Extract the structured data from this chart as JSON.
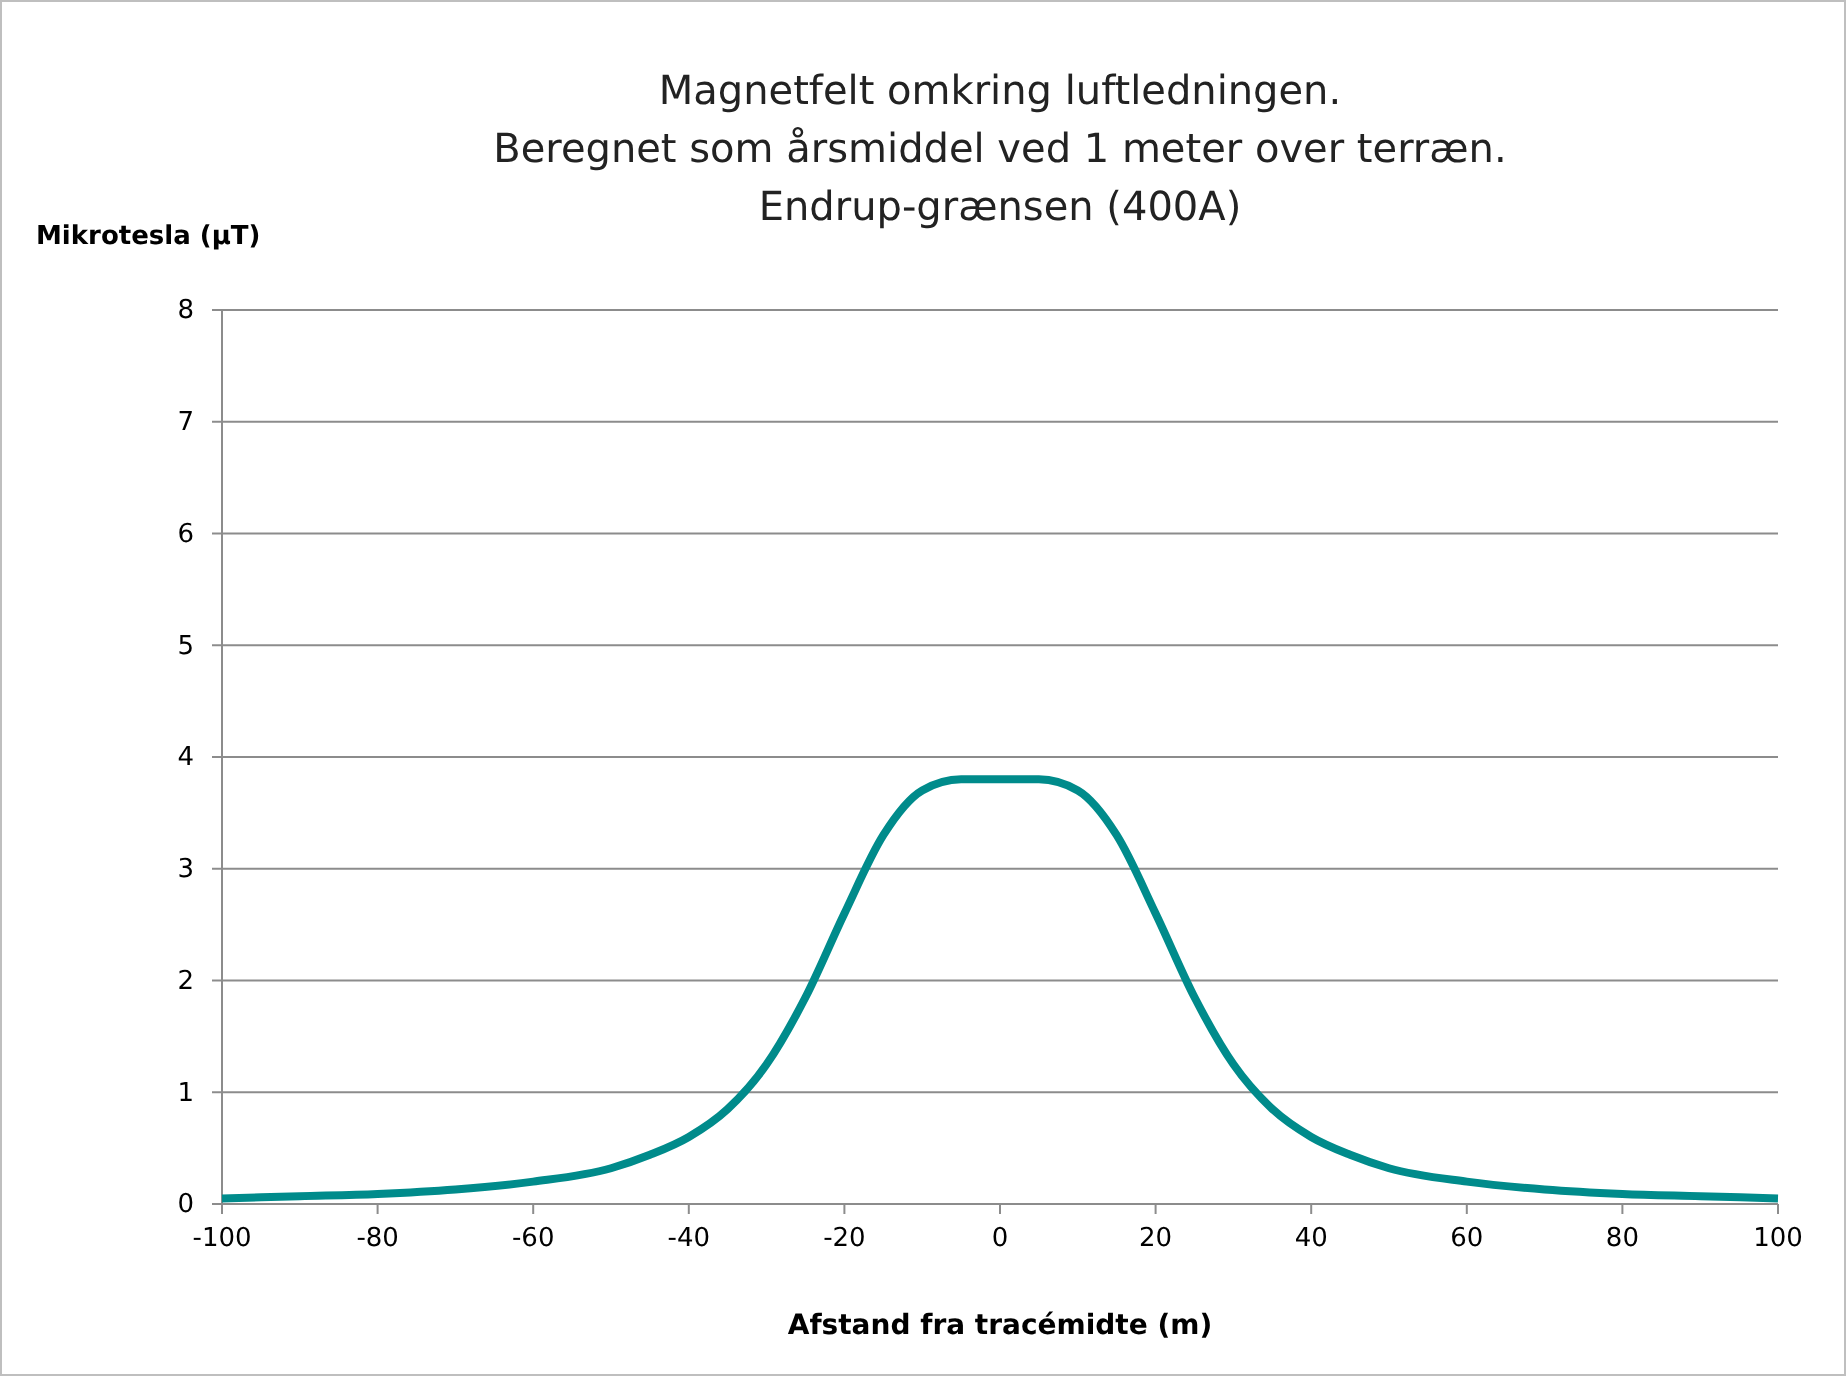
{
  "chart_data": {
    "type": "line",
    "title": "Magnetfelt omkring luftledningen.\nBeregnet som årsmiddel ved 1 meter over terræn.\nEndrup-grænsen  (400A)",
    "xlabel": "Afstand fra tracémidte (m)",
    "ylabel": "Mikrotesla (µT)",
    "x": [
      -100,
      -90,
      -80,
      -70,
      -60,
      -50,
      -45,
      -40,
      -35,
      -30,
      -25,
      -20,
      -15,
      -10,
      -5,
      0,
      5,
      10,
      15,
      20,
      25,
      30,
      35,
      40,
      45,
      50,
      60,
      70,
      80,
      90,
      100
    ],
    "series": [
      {
        "color": "#008b8b",
        "values": [
          0.05,
          0.07,
          0.09,
          0.13,
          0.2,
          0.32,
          0.44,
          0.6,
          0.85,
          1.25,
          1.85,
          2.6,
          3.3,
          3.7,
          3.8,
          3.8,
          3.8,
          3.7,
          3.3,
          2.6,
          1.85,
          1.25,
          0.85,
          0.6,
          0.44,
          0.32,
          0.2,
          0.13,
          0.09,
          0.07,
          0.05
        ]
      }
    ],
    "xlim": [
      -100,
      100
    ],
    "xticks": [
      -100,
      -80,
      -60,
      -40,
      -20,
      0,
      20,
      40,
      60,
      80,
      100
    ],
    "ylim": [
      0,
      8
    ],
    "yticks": [
      0,
      1,
      2,
      3,
      4,
      5,
      6,
      7,
      8
    ],
    "grid": "y",
    "marker": "none",
    "line_style": "solid"
  }
}
